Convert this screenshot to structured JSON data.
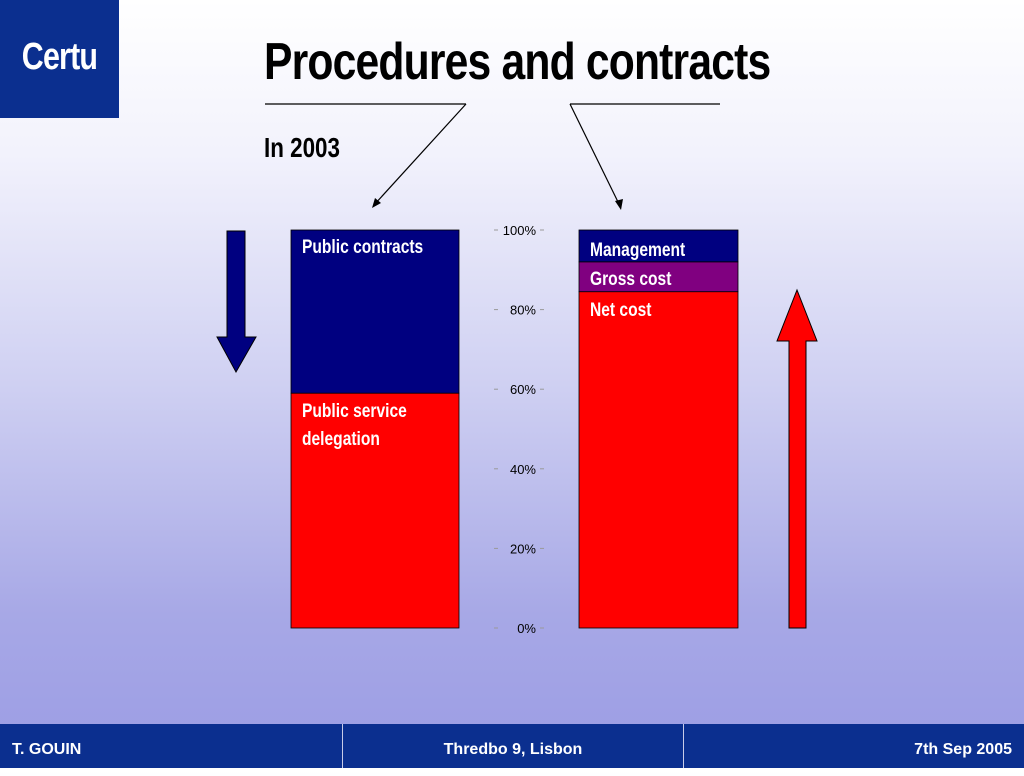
{
  "logo": {
    "text": "Certu"
  },
  "slide": {
    "title": "Procedures and contracts",
    "subtitle": "In 2003"
  },
  "colors": {
    "navy": "#000080",
    "red": "#ff0000",
    "purple": "#800080",
    "brand": "#0b2f8f"
  },
  "chart_data": {
    "type": "bar",
    "stacked": true,
    "normalized": true,
    "ylim": [
      0,
      100
    ],
    "yticks": [
      "0%",
      "20%",
      "40%",
      "60%",
      "80%",
      "100%"
    ],
    "bars": [
      {
        "segments": [
          {
            "label": "Public service delegation",
            "from": 0,
            "to": 59,
            "color": "#ff0000"
          },
          {
            "label": "Public contracts",
            "from": 59,
            "to": 100,
            "color": "#000080"
          }
        ]
      },
      {
        "segments": [
          {
            "label": "Net cost",
            "from": 0,
            "to": 84.5,
            "color": "#ff0000"
          },
          {
            "label": "Gross cost",
            "from": 84.5,
            "to": 92,
            "color": "#800080"
          },
          {
            "label": "Management",
            "from": 92,
            "to": 100,
            "color": "#000080"
          }
        ]
      }
    ],
    "labels": {
      "bar1_top": "Public contracts",
      "bar1_bottom_line1": "Public service",
      "bar1_bottom_line2": "delegation",
      "bar2_top": "Management",
      "bar2_mid": "Gross cost",
      "bar2_bottom": "Net cost"
    },
    "annotations": {
      "left_arrow": "decrease",
      "right_arrow": "increase"
    }
  },
  "footer": {
    "author": "T. GOUIN",
    "event": "Thredbo 9, Lisbon",
    "date": "7th Sep 2005"
  }
}
